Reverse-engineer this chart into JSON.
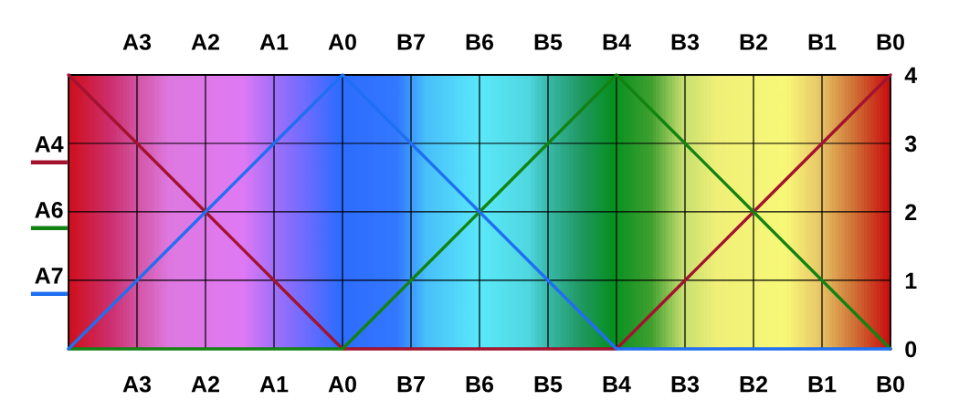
{
  "chart_data": {
    "type": "line",
    "categories": [
      null,
      "A3",
      "A2",
      "A1",
      "A0",
      "B7",
      "B6",
      "B5",
      "B4",
      "B3",
      "B2",
      "B1",
      "B0"
    ],
    "ylim": [
      0,
      4
    ],
    "yticks": [
      0,
      1,
      2,
      3,
      4
    ],
    "series": [
      {
        "name": "A4",
        "color": "#a3122e",
        "values": [
          4,
          3,
          2,
          1,
          0,
          0,
          0,
          0,
          0,
          1,
          2,
          3,
          4
        ]
      },
      {
        "name": "A6",
        "color": "#128312",
        "values": [
          0,
          0,
          0,
          0,
          0,
          1,
          2,
          3,
          4,
          3,
          2,
          1,
          0
        ]
      },
      {
        "name": "A7",
        "color": "#1f6ff2",
        "values": [
          0,
          1,
          2,
          3,
          4,
          3,
          2,
          1,
          0,
          0,
          0,
          0,
          0
        ]
      }
    ],
    "grid": true,
    "legend": "left",
    "line_style": "solid"
  }
}
